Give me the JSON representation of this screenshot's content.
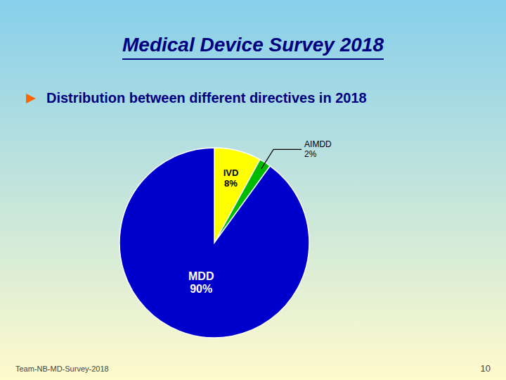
{
  "chart_data": {
    "type": "pie",
    "title": "Medical Device Survey 2018",
    "subtitle": "Distribution between different directives in 2018",
    "categories": [
      "IVD",
      "AIMDD",
      "MDD"
    ],
    "values": [
      8,
      2,
      90
    ],
    "value_labels": [
      "8%",
      "2%",
      "90%"
    ],
    "colors": [
      "#FFFF00",
      "#00BB00",
      "#0000CC"
    ],
    "data_labels": true,
    "annotations": [
      "Team-NB-MD-Survey-2018",
      "10"
    ]
  }
}
